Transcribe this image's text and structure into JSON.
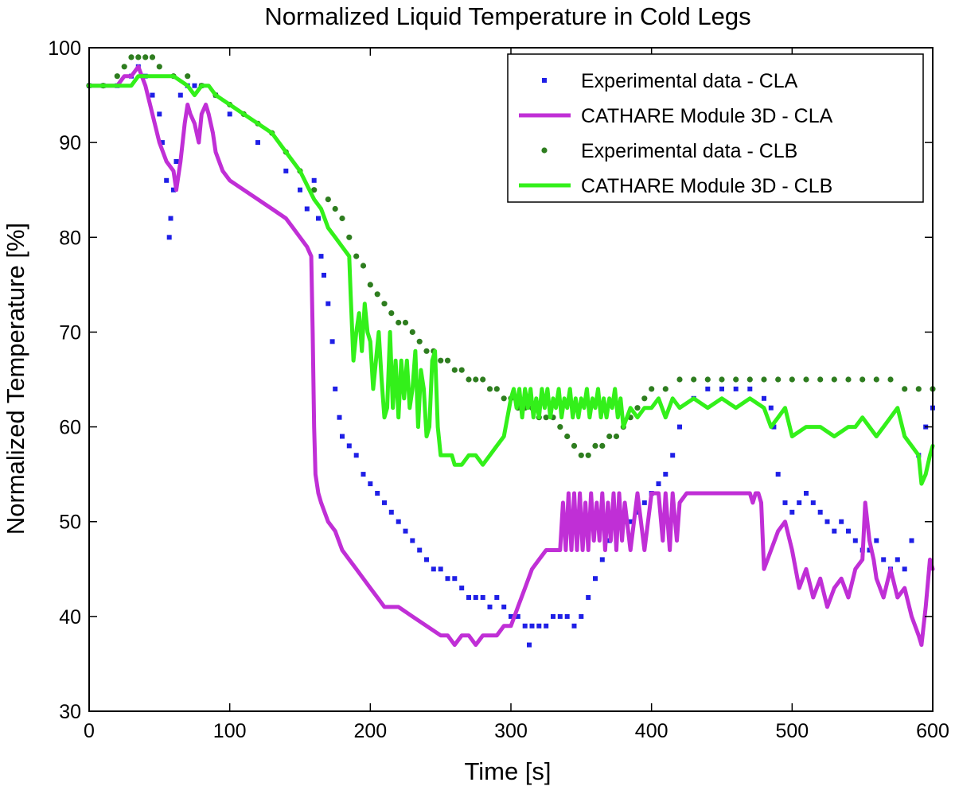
{
  "chart_data": {
    "type": "line",
    "title": "Normalized Liquid Temperature in Cold Legs",
    "xlabel": "Time [s]",
    "ylabel": "Normalized Temperature [%]",
    "xlim": [
      0,
      600
    ],
    "ylim": [
      30,
      100
    ],
    "xticks": [
      0,
      100,
      200,
      300,
      400,
      500,
      600
    ],
    "yticks": [
      30,
      40,
      50,
      60,
      70,
      80,
      90,
      100
    ],
    "grid": false,
    "legend_position": "top-right",
    "series": [
      {
        "name": "Experimental data - CLA",
        "style": "markers",
        "marker": "square",
        "color": "#1f1fe6",
        "x": [
          0,
          10,
          20,
          30,
          35,
          40,
          45,
          50,
          52,
          55,
          57,
          58,
          60,
          62,
          65,
          70,
          75,
          80,
          90,
          100,
          120,
          140,
          150,
          155,
          160,
          163,
          165,
          167,
          170,
          173,
          175,
          178,
          180,
          185,
          190,
          195,
          200,
          205,
          210,
          215,
          220,
          225,
          230,
          235,
          240,
          245,
          250,
          255,
          260,
          265,
          270,
          275,
          280,
          285,
          290,
          295,
          300,
          305,
          310,
          313,
          315,
          320,
          325,
          330,
          335,
          340,
          345,
          350,
          355,
          360,
          365,
          370,
          375,
          380,
          385,
          390,
          395,
          400,
          405,
          410,
          415,
          420,
          430,
          440,
          450,
          460,
          470,
          480,
          485,
          487,
          490,
          495,
          500,
          505,
          510,
          515,
          520,
          525,
          530,
          535,
          540,
          545,
          550,
          555,
          560,
          565,
          570,
          575,
          580,
          585,
          590,
          595,
          600
        ],
        "y": [
          96,
          96,
          96,
          97,
          98,
          97,
          95,
          93,
          90,
          86,
          80,
          82,
          85,
          88,
          95,
          96,
          96,
          96,
          95,
          93,
          90,
          87,
          85,
          83,
          86,
          82,
          78,
          76,
          73,
          69,
          64,
          61,
          59,
          58,
          57,
          55,
          54,
          53,
          52,
          51,
          50,
          49,
          48,
          47,
          46,
          45,
          45,
          44,
          44,
          43,
          42,
          42,
          42,
          41,
          42,
          41,
          40,
          40,
          39,
          37,
          39,
          39,
          39,
          40,
          40,
          40,
          39,
          40,
          42,
          44,
          46,
          48,
          49,
          50,
          50,
          51,
          52,
          53,
          54,
          55,
          57,
          60,
          63,
          64,
          64,
          64,
          64,
          63,
          62,
          60,
          55,
          52,
          51,
          52,
          53,
          52,
          51,
          50,
          49,
          50,
          49,
          48,
          47,
          47,
          48,
          46,
          45,
          46,
          45,
          48,
          57,
          60,
          62
        ]
      },
      {
        "name": "CATHARE Module 3D - CLA",
        "style": "line",
        "color": "#c02fd6",
        "x": [
          0,
          10,
          20,
          25,
          30,
          35,
          40,
          45,
          50,
          55,
          60,
          62,
          65,
          68,
          70,
          72,
          75,
          78,
          80,
          83,
          85,
          88,
          90,
          95,
          100,
          110,
          120,
          130,
          140,
          145,
          150,
          155,
          158,
          159,
          160,
          161,
          163,
          165,
          170,
          175,
          180,
          185,
          190,
          195,
          200,
          205,
          210,
          220,
          230,
          240,
          250,
          255,
          260,
          265,
          270,
          275,
          280,
          285,
          290,
          295,
          300,
          305,
          310,
          315,
          320,
          325,
          330,
          335,
          337,
          339,
          341,
          343,
          345,
          347,
          349,
          351,
          353,
          355,
          357,
          359,
          361,
          363,
          365,
          367,
          369,
          371,
          373,
          375,
          377,
          379,
          381,
          385,
          390,
          395,
          400,
          405,
          408,
          410,
          413,
          415,
          418,
          420,
          425,
          430,
          440,
          450,
          460,
          465,
          470,
          472,
          474,
          476,
          478,
          480,
          490,
          495,
          500,
          505,
          510,
          515,
          520,
          525,
          530,
          535,
          540,
          545,
          550,
          552,
          555,
          558,
          560,
          565,
          570,
          575,
          580,
          585,
          590,
          592,
          595,
          598,
          600
        ],
        "y": [
          96,
          96,
          96,
          97,
          97,
          98,
          96,
          93,
          90,
          88,
          87,
          85,
          88,
          92,
          94,
          93,
          92,
          90,
          93,
          94,
          93,
          91,
          89,
          87,
          86,
          85,
          84,
          83,
          82,
          81,
          80,
          79,
          78,
          70,
          60,
          55,
          53,
          52,
          50,
          49,
          47,
          46,
          45,
          44,
          43,
          42,
          41,
          41,
          40,
          39,
          38,
          38,
          37,
          38,
          38,
          37,
          38,
          38,
          38,
          39,
          39,
          41,
          43,
          45,
          46,
          47,
          47,
          47,
          52,
          47,
          53,
          47,
          53,
          47,
          53,
          47,
          52,
          47,
          53,
          48,
          52,
          48,
          53,
          47,
          52,
          48,
          53,
          47,
          53,
          48,
          52,
          47,
          53,
          47,
          53,
          53,
          48,
          53,
          47,
          53,
          48,
          52,
          53,
          53,
          53,
          53,
          53,
          53,
          53,
          52,
          53,
          53,
          52,
          45,
          49,
          50,
          47,
          43,
          45,
          42,
          44,
          41,
          43,
          44,
          42,
          45,
          46,
          52,
          48,
          46,
          44,
          42,
          45,
          42,
          43,
          40,
          38,
          37,
          41,
          46,
          45
        ]
      },
      {
        "name": "Experimental data - CLB",
        "style": "markers",
        "marker": "circle",
        "color": "#2e7d1f",
        "x": [
          0,
          10,
          20,
          25,
          30,
          35,
          40,
          45,
          50,
          60,
          70,
          80,
          90,
          100,
          110,
          120,
          130,
          140,
          150,
          160,
          170,
          175,
          180,
          185,
          190,
          195,
          200,
          205,
          210,
          215,
          220,
          225,
          230,
          235,
          240,
          245,
          250,
          255,
          260,
          265,
          270,
          275,
          280,
          285,
          290,
          295,
          300,
          305,
          310,
          315,
          320,
          325,
          330,
          335,
          340,
          345,
          350,
          355,
          360,
          365,
          370,
          375,
          380,
          385,
          390,
          395,
          400,
          410,
          420,
          430,
          440,
          450,
          460,
          470,
          480,
          490,
          500,
          510,
          520,
          530,
          540,
          550,
          560,
          570,
          580,
          590,
          600
        ],
        "y": [
          96,
          96,
          97,
          98,
          99,
          99,
          99,
          99,
          98,
          97,
          97,
          96,
          95,
          94,
          93,
          92,
          91,
          89,
          87,
          85,
          84,
          83,
          82,
          80,
          78,
          77,
          75,
          74,
          73,
          72,
          71,
          71,
          70,
          69,
          68,
          68,
          67,
          67,
          66,
          66,
          65,
          65,
          65,
          64,
          64,
          63,
          63,
          62,
          62,
          62,
          61,
          61,
          61,
          60,
          59,
          58,
          57,
          57,
          58,
          58,
          59,
          59,
          60,
          61,
          62,
          63,
          64,
          64,
          65,
          65,
          65,
          65,
          65,
          65,
          65,
          65,
          65,
          65,
          65,
          65,
          65,
          65,
          65,
          65,
          64,
          64,
          64
        ]
      },
      {
        "name": "CATHARE Module 3D - CLB",
        "style": "line",
        "color": "#33f01a",
        "x": [
          0,
          10,
          20,
          30,
          35,
          40,
          45,
          50,
          60,
          70,
          75,
          80,
          85,
          90,
          100,
          110,
          120,
          130,
          140,
          150,
          160,
          165,
          170,
          175,
          180,
          185,
          186,
          188,
          190,
          192,
          194,
          196,
          198,
          200,
          202,
          204,
          206,
          208,
          210,
          212,
          214,
          216,
          218,
          220,
          222,
          224,
          226,
          228,
          230,
          232,
          234,
          236,
          238,
          240,
          242,
          244,
          246,
          248,
          250,
          252,
          254,
          256,
          258,
          260,
          265,
          270,
          275,
          280,
          285,
          290,
          295,
          300,
          302,
          304,
          306,
          308,
          310,
          312,
          314,
          316,
          318,
          320,
          322,
          324,
          326,
          328,
          330,
          332,
          334,
          336,
          338,
          340,
          342,
          344,
          346,
          348,
          350,
          352,
          354,
          356,
          358,
          360,
          362,
          364,
          366,
          368,
          370,
          372,
          374,
          376,
          378,
          380,
          385,
          390,
          395,
          400,
          405,
          410,
          415,
          420,
          430,
          440,
          450,
          460,
          470,
          480,
          485,
          490,
          495,
          500,
          510,
          520,
          530,
          540,
          545,
          550,
          555,
          560,
          565,
          570,
          575,
          580,
          585,
          590,
          592,
          595,
          598,
          600
        ],
        "y": [
          96,
          96,
          96,
          96,
          97,
          97,
          97,
          97,
          97,
          96,
          95,
          96,
          96,
          95,
          94,
          93,
          92,
          91,
          89,
          87,
          84,
          83,
          81,
          80,
          79,
          78,
          74,
          67,
          70,
          72,
          68,
          73,
          70,
          69,
          64,
          67,
          70,
          65,
          61,
          62,
          70,
          62,
          67,
          61,
          67,
          63,
          67,
          62,
          64,
          68,
          60,
          66,
          64,
          59,
          60,
          67,
          68,
          60,
          57,
          57,
          57,
          57,
          57,
          56,
          56,
          57,
          57,
          56,
          57,
          58,
          59,
          63,
          64,
          62,
          64,
          61,
          64,
          62,
          64,
          61,
          63,
          61,
          64,
          62,
          64,
          61,
          63,
          62,
          64,
          61,
          63,
          62,
          64,
          61,
          63,
          61,
          63,
          62,
          64,
          61,
          63,
          62,
          64,
          61,
          63,
          61,
          63,
          62,
          64,
          61,
          63,
          60,
          62,
          61,
          62,
          62,
          63,
          61,
          63,
          62,
          63,
          62,
          63,
          62,
          63,
          62,
          60,
          61,
          62,
          59,
          60,
          60,
          59,
          60,
          60,
          61,
          60,
          59,
          60,
          61,
          62,
          59,
          58,
          57,
          54,
          55,
          57,
          58
        ]
      }
    ]
  }
}
